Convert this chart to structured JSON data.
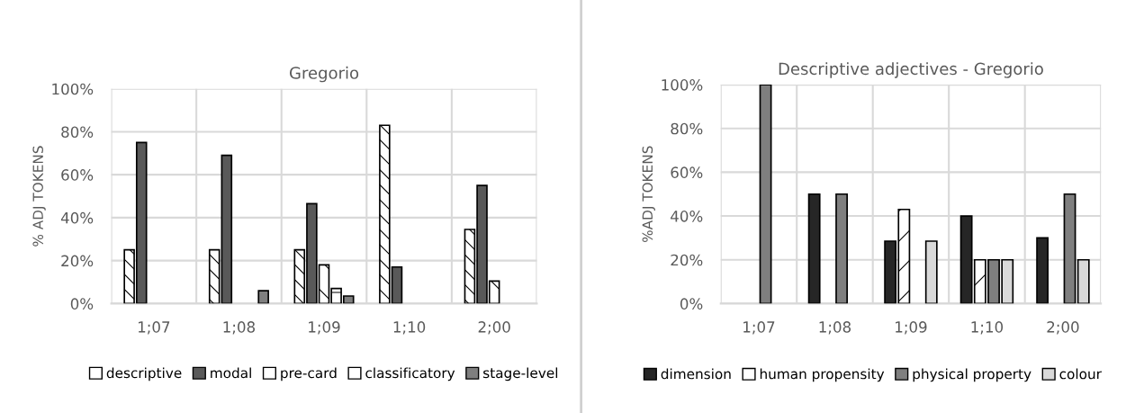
{
  "chart_data": [
    {
      "type": "bar",
      "title": "Gregorio",
      "ylabel": "% ADJ TOKENS",
      "categories": [
        "1;07",
        "1;08",
        "1;09",
        "1;10",
        "2;00"
      ],
      "series": [
        {
          "name": "descriptive",
          "color": "#ffffff",
          "values": [
            25,
            25,
            25,
            83,
            34.5
          ]
        },
        {
          "name": "modal",
          "color": "#595959",
          "values": [
            75,
            69,
            46.5,
            17,
            55
          ]
        },
        {
          "name": "pre-card",
          "color": "#ffffff",
          "values": [
            null,
            null,
            18,
            null,
            10.5
          ]
        },
        {
          "name": "classificatory",
          "color": "#ffffff",
          "values": [
            null,
            null,
            7,
            null,
            null
          ]
        },
        {
          "name": "stage-level",
          "color": "#7f7f7f",
          "values": [
            null,
            6,
            3.5,
            null,
            null
          ]
        }
      ],
      "ylim": [
        0,
        100
      ],
      "yticks": [
        {
          "value": 0,
          "label": "0%"
        },
        {
          "value": 20,
          "label": "20%"
        },
        {
          "value": 40,
          "label": "40%"
        },
        {
          "value": 60,
          "label": "60%"
        },
        {
          "value": 80,
          "label": "80%"
        },
        {
          "value": 100,
          "label": "100%"
        }
      ],
      "grid": true,
      "legend": "bottom"
    },
    {
      "type": "bar",
      "title": "Descriptive adjectives - Gregorio",
      "ylabel": "%ADJ TOKENS",
      "categories": [
        "1;07",
        "1;08",
        "1;09",
        "1;10",
        "2;00"
      ],
      "series": [
        {
          "name": "dimension",
          "color": "#262626",
          "values": [
            null,
            50,
            28.5,
            40,
            30
          ]
        },
        {
          "name": "human propensity",
          "color": "#ffffff",
          "values": [
            null,
            null,
            43,
            20,
            null
          ]
        },
        {
          "name": "physical property",
          "color": "#7f7f7f",
          "values": [
            100,
            50,
            null,
            20,
            50
          ]
        },
        {
          "name": "colour",
          "color": "#d9d9d9",
          "values": [
            null,
            null,
            28.5,
            20,
            20
          ]
        }
      ],
      "ylim": [
        0,
        100
      ],
      "yticks": [
        {
          "value": 0,
          "label": "0%"
        },
        {
          "value": 20,
          "label": "20%"
        },
        {
          "value": 40,
          "label": "40%"
        },
        {
          "value": 60,
          "label": "60%"
        },
        {
          "value": 80,
          "label": "80%"
        },
        {
          "value": 100,
          "label": "100%"
        }
      ],
      "grid": true,
      "legend": "bottom"
    }
  ]
}
